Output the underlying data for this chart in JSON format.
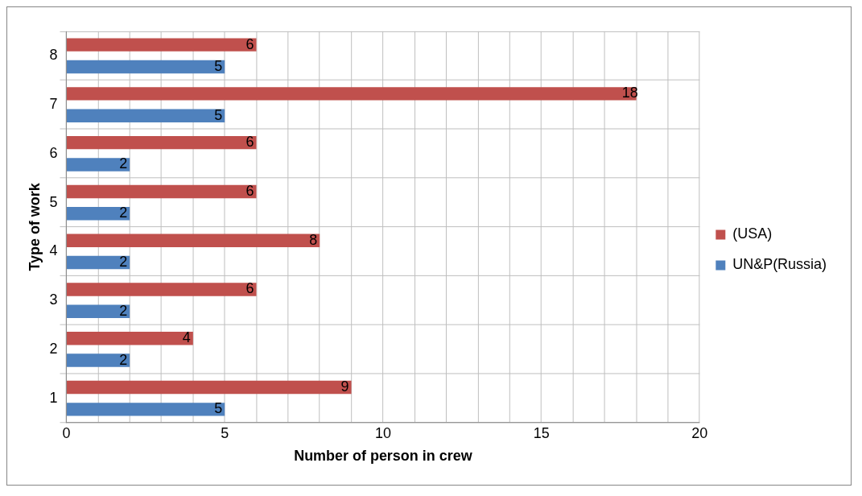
{
  "chart_data": {
    "type": "bar",
    "orientation": "horizontal",
    "xlabel": "Number of person in crew",
    "ylabel": "Type of work",
    "categories": [
      "8",
      "7",
      "6",
      "5",
      "4",
      "3",
      "2",
      "1"
    ],
    "series": [
      {
        "name": "(USA)",
        "color": "#c0504d",
        "values": [
          6,
          18,
          6,
          6,
          8,
          6,
          4,
          9
        ]
      },
      {
        "name": "UN&P(Russia)",
        "color": "#4f81bd",
        "values": [
          5,
          5,
          2,
          2,
          2,
          2,
          2,
          5
        ]
      }
    ],
    "xlim": [
      0,
      20
    ],
    "xticks": [
      0,
      {
        "value": 1,
        "label": null
      },
      {
        "value": 2,
        "label": null
      },
      {
        "value": 3,
        "label": null
      },
      {
        "value": 4,
        "label": null
      },
      5,
      {
        "value": 6,
        "label": null
      },
      {
        "value": 7,
        "label": null
      },
      {
        "value": 8,
        "label": null
      },
      {
        "value": 9,
        "label": null
      },
      10,
      {
        "value": 11,
        "label": null
      },
      {
        "value": 12,
        "label": null
      },
      {
        "value": 13,
        "label": null
      },
      {
        "value": 14,
        "label": null
      },
      15,
      {
        "value": 16,
        "label": null
      },
      {
        "value": 17,
        "label": null
      },
      {
        "value": 18,
        "label": null
      },
      {
        "value": 19,
        "label": null
      },
      20
    ],
    "grid": true,
    "legend": "right",
    "data_labels": true
  }
}
